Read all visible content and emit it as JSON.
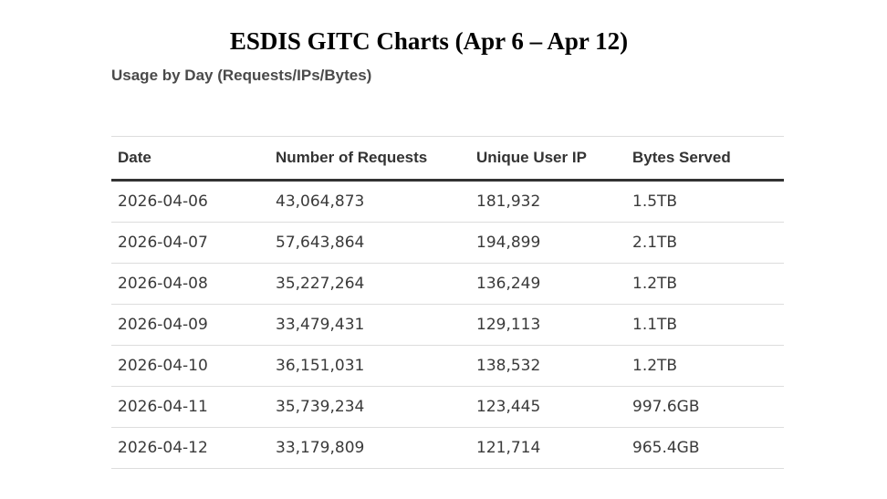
{
  "title": "ESDIS GITC Charts (Apr 6 – Apr 12)",
  "subtitle": "Usage by Day (Requests/IPs/Bytes)",
  "colors": {
    "title_text": "#000000",
    "header_text": "#333333",
    "cell_text": "#3a3a3a",
    "header_rule": "#333333",
    "row_rule": "#dddddd"
  },
  "chart_data": {
    "type": "table",
    "title": "ESDIS GITC Charts (Apr 6 – Apr 12)",
    "subtitle": "Usage by Day (Requests/IPs/Bytes)",
    "columns": [
      "Date",
      "Number of Requests",
      "Unique User IP",
      "Bytes Served"
    ],
    "rows": [
      [
        "2026-04-06",
        "43,064,873",
        "181,932",
        "1.5TB"
      ],
      [
        "2026-04-07",
        "57,643,864",
        "194,899",
        "2.1TB"
      ],
      [
        "2026-04-08",
        "35,227,264",
        "136,249",
        "1.2TB"
      ],
      [
        "2026-04-09",
        "33,479,431",
        "129,113",
        "1.1TB"
      ],
      [
        "2026-04-10",
        "36,151,031",
        "138,532",
        "1.2TB"
      ],
      [
        "2026-04-11",
        "35,739,234",
        "123,445",
        "997.6GB"
      ],
      [
        "2026-04-12",
        "33,179,809",
        "121,714",
        "965.4GB"
      ]
    ]
  }
}
